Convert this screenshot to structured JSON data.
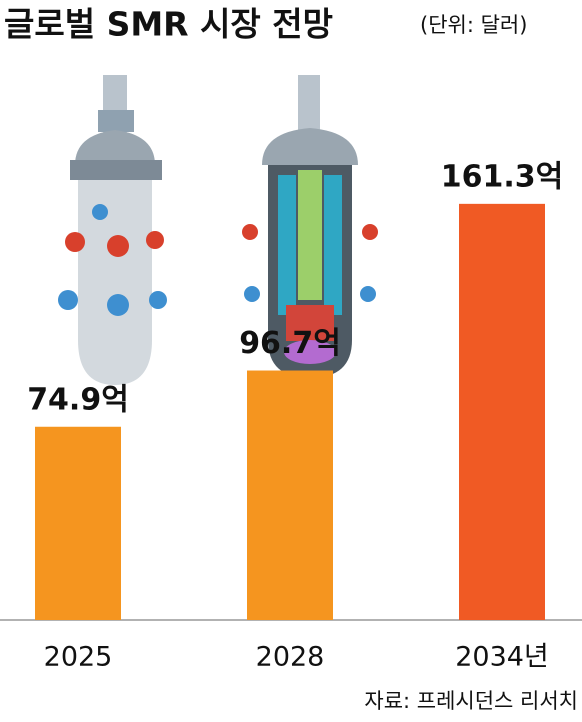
{
  "chart_data": {
    "type": "bar",
    "title": "글로벌 SMR 시장 전망",
    "subtitle": "(단위: 달러)",
    "categories": [
      "2025",
      "2028",
      "2034년"
    ],
    "values": [
      74.9,
      96.7,
      161.3
    ],
    "value_labels": [
      "74.9억",
      "96.7억",
      "161.3억"
    ],
    "colors": [
      "#f5951f",
      "#f5951f",
      "#f05a24"
    ],
    "source": "자료: 프레시던스 리서치"
  }
}
